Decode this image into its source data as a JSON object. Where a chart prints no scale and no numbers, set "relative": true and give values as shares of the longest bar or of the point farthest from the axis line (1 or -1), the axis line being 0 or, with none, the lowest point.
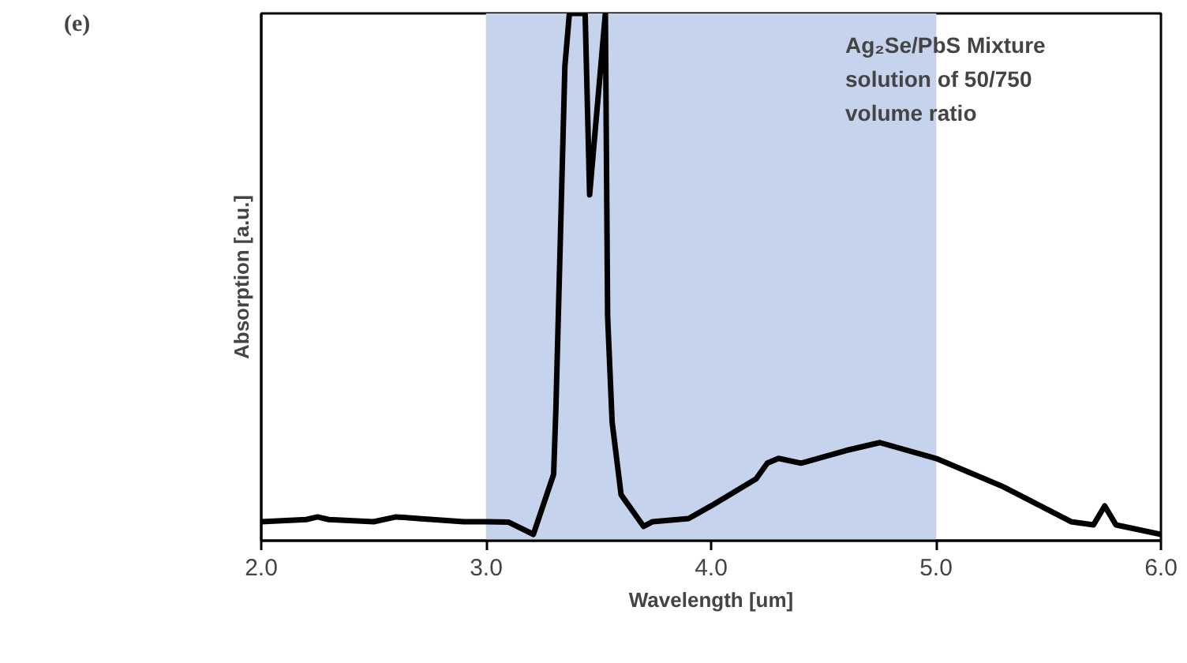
{
  "chart_data": {
    "type": "line",
    "relative": true,
    "xlabel": "Wavelength [um]",
    "ylabel": "Absorption [a.u.]",
    "xlim": [
      2,
      6
    ],
    "xticks": [
      {
        "value": 2,
        "label": "2.0"
      },
      {
        "value": 3,
        "label": "3.0"
      },
      {
        "value": 4,
        "label": "4.0"
      },
      {
        "value": 5,
        "label": "5.0"
      },
      {
        "value": 6,
        "label": "6.0"
      }
    ],
    "tick_labels": "x",
    "grid": false,
    "annotations": [
      "(e)",
      "Ag₂Se/PbS Mixture\nsolution of 50/750\nvolume ratio"
    ],
    "bands": [
      {
        "axis": "x",
        "from": 3,
        "to": 5,
        "color": "#c5d3ec"
      }
    ],
    "series": [
      {
        "color": "#000000",
        "x": [
          2.0,
          2.2,
          2.25,
          2.3,
          2.5,
          2.6,
          2.7,
          2.9,
          3.0,
          3.1,
          3.21,
          3.3,
          3.31,
          3.35,
          3.37,
          3.44,
          3.46,
          3.53,
          3.54,
          3.56,
          3.6,
          3.7,
          3.74,
          3.9,
          4.0,
          4.2,
          4.25,
          4.3,
          4.4,
          4.6,
          4.75,
          5.0,
          5.3,
          5.6,
          5.7,
          5.75,
          5.8,
          6.0
        ],
        "values": [
          0.036,
          0.04,
          0.045,
          0.04,
          0.036,
          0.045,
          0.042,
          0.036,
          0.036,
          0.035,
          0.012,
          0.126,
          0.25,
          0.9,
          1.0,
          1.0,
          0.656,
          1.0,
          0.425,
          0.225,
          0.087,
          0.027,
          0.036,
          0.042,
          0.066,
          0.117,
          0.147,
          0.156,
          0.147,
          0.171,
          0.186,
          0.156,
          0.102,
          0.036,
          0.03,
          0.066,
          0.03,
          0.012
        ]
      }
    ]
  }
}
